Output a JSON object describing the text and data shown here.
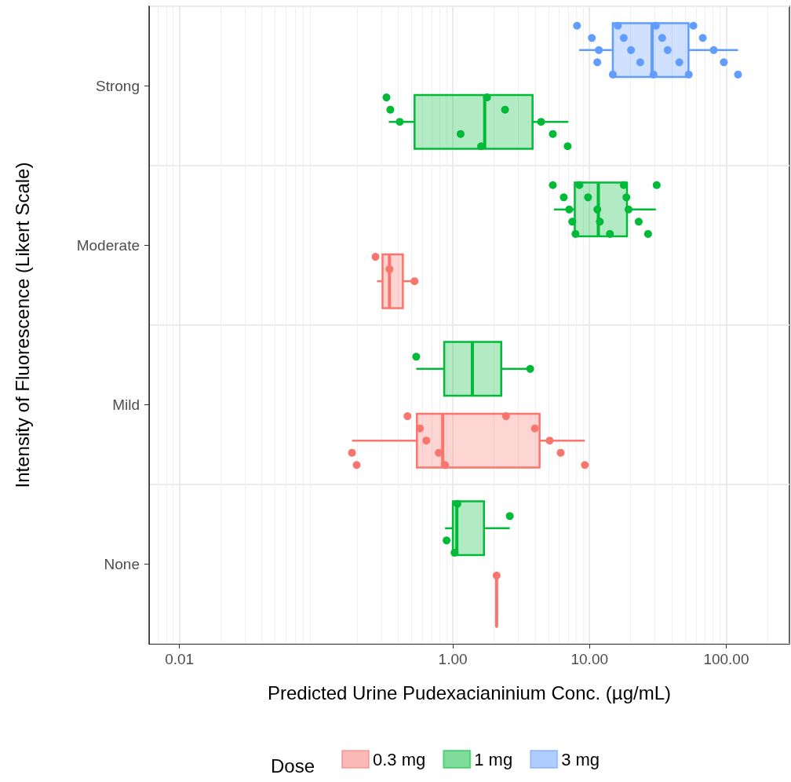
{
  "chart_data": {
    "type": "box",
    "orientation": "horizontal",
    "log": "x",
    "grid": true,
    "legend": "bottom",
    "legend_title": "Dose",
    "xlabel": "Predicted Urine Pudexacianinium Conc. (µg/mL)",
    "ylabel": "Intensity of Fluorescence (Likert Scale)",
    "categories": [
      "Strong",
      "Moderate",
      "Mild",
      "None"
    ],
    "xlim": [
      0.006,
      290
    ],
    "xticks": [
      {
        "value": 0.01,
        "label": "0.01"
      },
      {
        "value": 1,
        "label": "1.00"
      },
      {
        "value": 10,
        "label": "10.00"
      },
      {
        "value": 100,
        "label": "100.00"
      }
    ],
    "series": [
      {
        "name": "0.3 mg",
        "color": "#f8766d",
        "boxes": [
          null,
          {
            "low": 0.279,
            "q1": 0.306,
            "median": 0.344,
            "q3": 0.431,
            "high": 0.525
          },
          {
            "low": 0.183,
            "q1": 0.546,
            "median": 0.843,
            "q3": 4.31,
            "high": 9.25
          },
          {
            "low": 2.09,
            "q1": 2.09,
            "median": 2.09,
            "q3": 2.09,
            "high": 2.09
          }
        ]
      },
      {
        "name": "1 mg",
        "color": "#00ba38",
        "boxes": [
          {
            "low": 0.34,
            "q1": 0.525,
            "median": 1.71,
            "q3": 3.83,
            "high": 7.0
          },
          {
            "low": 5.5,
            "q1": 7.8,
            "median": 11.6,
            "q3": 18.8,
            "high": 30.6
          },
          {
            "low": 0.54,
            "q1": 0.865,
            "median": 1.39,
            "q3": 2.26,
            "high": 3.68
          },
          {
            "low": 0.877,
            "q1": 1.0,
            "median": 1.07,
            "q3": 1.69,
            "high": 2.61
          }
        ]
      },
      {
        "name": "3 mg",
        "color": "#619cff",
        "boxes": [
          {
            "low": 8.4,
            "q1": 14.8,
            "median": 28.7,
            "q3": 53,
            "high": 122
          },
          null,
          null,
          null
        ]
      },
      {
        "type": "scatter",
        "color": "#f8766d",
        "x": [
          "Moderate",
          "Moderate",
          "Moderate",
          "Mild",
          "Mild",
          "Mild",
          "Mild",
          "Mild",
          "Mild",
          "Mild",
          "Mild",
          "Mild",
          "Mild",
          "Mild",
          "Mild",
          "None"
        ],
        "values": [
          0.272,
          0.344,
          0.525,
          0.183,
          0.198,
          0.466,
          0.575,
          0.64,
          0.789,
          0.877,
          2.45,
          3.98,
          5.11,
          6.15,
          9.25,
          2.09
        ]
      },
      {
        "type": "scatter",
        "color": "#00ba38",
        "x": [
          "Strong",
          "Strong",
          "Strong",
          "Strong",
          "Strong",
          "Strong",
          "Strong",
          "Strong",
          "Strong",
          "Strong",
          "Moderate",
          "Moderate",
          "Moderate",
          "Moderate",
          "Moderate",
          "Moderate",
          "Moderate",
          "Moderate",
          "Moderate",
          "Moderate",
          "Moderate",
          "Moderate",
          "Moderate",
          "Moderate",
          "Moderate",
          "Moderate",
          "Mild",
          "Mild",
          "None",
          "None",
          "None",
          "None"
        ],
        "values": [
          0.327,
          0.349,
          0.409,
          1.14,
          1.61,
          1.78,
          2.41,
          4.42,
          5.39,
          6.92,
          5.39,
          6.48,
          7.1,
          7.48,
          7.89,
          8.43,
          9.75,
          11.4,
          11.9,
          14.1,
          17.8,
          18.6,
          19.3,
          22.9,
          26.8,
          31.0,
          0.54,
          3.68,
          0.9,
          1.03,
          1.08,
          2.61
        ]
      },
      {
        "type": "scatter",
        "color": "#619cff",
        "x": [
          "Strong",
          "Strong",
          "Strong",
          "Strong",
          "Strong",
          "Strong",
          "Strong",
          "Strong",
          "Strong",
          "Strong",
          "Strong",
          "Strong",
          "Strong",
          "Strong",
          "Strong",
          "Strong",
          "Strong",
          "Strong",
          "Strong",
          "Strong"
        ],
        "values": [
          8.1,
          10.4,
          11.7,
          11.4,
          14.8,
          16.1,
          17.8,
          20.1,
          23.5,
          29.4,
          30.6,
          34.0,
          37.3,
          45.4,
          53.2,
          57.5,
          67.4,
          81.0,
          96.1,
          122
        ]
      }
    ]
  }
}
